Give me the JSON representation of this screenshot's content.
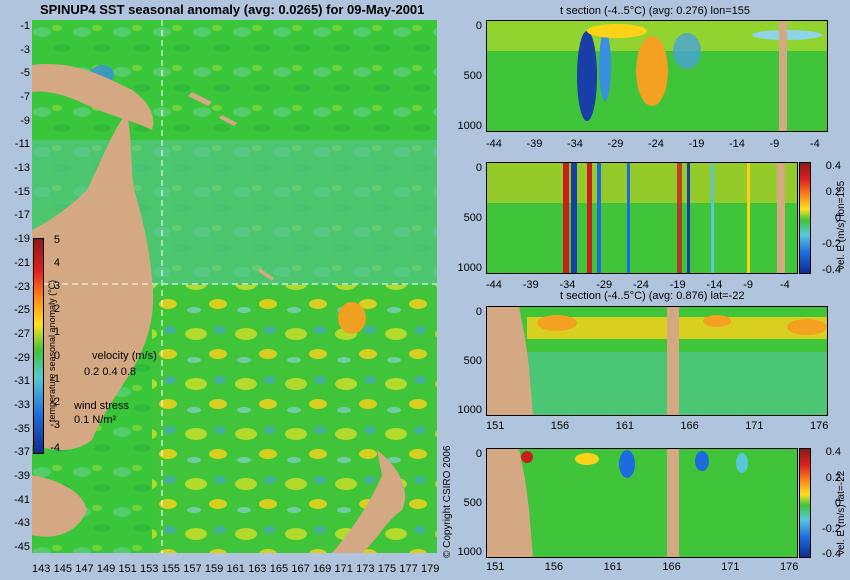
{
  "map": {
    "title": "SPINUP4 SST seasonal anomaly (avg: 0.0265) for 09-May-2001",
    "y_ticks": [
      "-1",
      "-3",
      "-5",
      "-7",
      "-9",
      "-11",
      "-13",
      "-15",
      "-17",
      "-19",
      "-21",
      "-23",
      "-25",
      "-27",
      "-29",
      "-31",
      "-33",
      "-35",
      "-37",
      "-39",
      "-41",
      "-43",
      "-45"
    ],
    "x_ticks": [
      "143",
      "145",
      "147",
      "149",
      "151",
      "153",
      "155",
      "157",
      "159",
      "161",
      "163",
      "165",
      "167",
      "169",
      "171",
      "173",
      "175",
      "177",
      "179"
    ],
    "colorbar_label": "temperature seasonal anomaly (°C)",
    "colorbar_ticks": [
      "5",
      "4",
      "3",
      "2",
      "1",
      "0",
      "-1",
      "-2",
      "-3",
      "-4"
    ],
    "velocity_label": "velocity (m/s)",
    "velocity_scale": "0.2 0.4 0.8",
    "wind_label": "wind stress",
    "wind_scale": "0.1 N/m²",
    "copyright": "© Copyright CSIRO 2006"
  },
  "panels": {
    "p1": {
      "title": "t section (-4..5°C) (avg: 0.276) lon=155",
      "x_ticks": [
        "-44",
        "-39",
        "-34",
        "-29",
        "-24",
        "-19",
        "-14",
        "-9",
        "-4"
      ],
      "y_ticks": [
        "0",
        "500",
        "1000"
      ]
    },
    "p2": {
      "x_ticks": [
        "-44",
        "-39",
        "-34",
        "-29",
        "-24",
        "-19",
        "-14",
        "-9",
        "-4"
      ],
      "y_ticks": [
        "0",
        "500",
        "1000"
      ],
      "cb_label": "vel. E (m/s) lon=155",
      "cb_ticks": [
        "0.4",
        "0.2",
        "0",
        "-0.2",
        "-0.4"
      ]
    },
    "p3": {
      "title": "t section (-4..5°C) (avg: 0.876) lat=-22",
      "x_ticks": [
        "151",
        "156",
        "161",
        "166",
        "171",
        "176"
      ],
      "y_ticks": [
        "0",
        "500",
        "1000"
      ]
    },
    "p4": {
      "x_ticks": [
        "151",
        "156",
        "161",
        "166",
        "171",
        "176"
      ],
      "y_ticks": [
        "0",
        "500",
        "1000"
      ],
      "cb_label": "vel. E (m/s) lat=-22",
      "cb_ticks": [
        "0.4",
        "0.2",
        "0",
        "-0.2",
        "-0.4"
      ]
    }
  },
  "colors": {
    "background": "#b0c4de",
    "ocean": "#2ecc40",
    "land": "#d4a883"
  }
}
